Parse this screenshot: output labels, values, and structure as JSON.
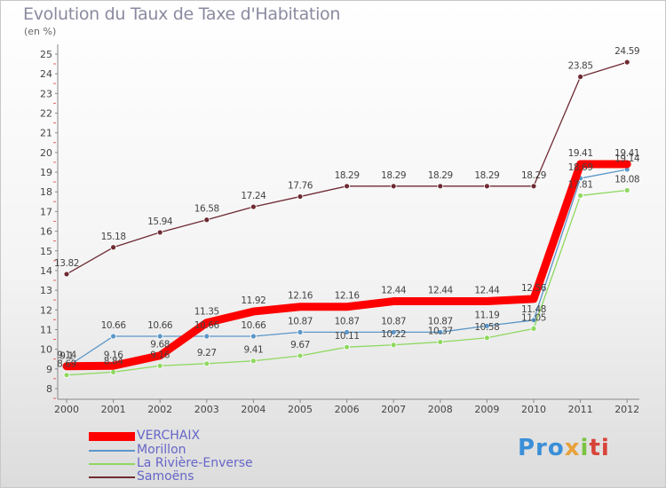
{
  "header": {
    "title": "Evolution du Taux de Taxe d'Habitation",
    "unit": "(en %)"
  },
  "logo": {
    "parts": [
      "Pro",
      "x",
      "i",
      "ti"
    ]
  },
  "chart_data": {
    "type": "line",
    "title": "Evolution du Taux de Taxe d'Habitation",
    "ylabel": "(en %)",
    "xlabel": "",
    "ylim": [
      8,
      25
    ],
    "yticks": [
      8,
      9,
      10,
      11,
      12,
      13,
      14,
      15,
      16,
      17,
      18,
      19,
      20,
      21,
      22,
      23,
      24,
      25
    ],
    "grid": false,
    "legend_position": "bottom-left",
    "categories": [
      "2000",
      "2001",
      "2002",
      "2003",
      "2004",
      "2005",
      "2006",
      "2007",
      "2008",
      "2009",
      "2010",
      "2011",
      "2012"
    ],
    "series": [
      {
        "name": "Samoëns",
        "color": "#6e2a32",
        "values": [
          13.82,
          15.18,
          15.94,
          16.58,
          17.24,
          17.76,
          18.29,
          18.29,
          18.29,
          18.29,
          18.29,
          23.85,
          24.59
        ],
        "labels": [
          "13.82",
          "15.18",
          "15.94",
          "16.58",
          "17.24",
          "17.76",
          "18.29",
          "18.29",
          "18.29",
          "18.29",
          "18.29",
          "23.85",
          "24.59"
        ]
      },
      {
        "name": "Morillon",
        "color": "#5b96c8",
        "values": [
          9.1,
          10.66,
          10.66,
          10.66,
          10.66,
          10.87,
          10.87,
          10.87,
          10.87,
          11.19,
          11.48,
          18.69,
          19.14
        ],
        "labels": [
          "9.1",
          "10.66",
          "10.66",
          "10.66",
          "10.66",
          "10.87",
          "10.87",
          "10.87",
          "10.87",
          "11.19",
          "11.48",
          "18.69",
          "19.14"
        ]
      },
      {
        "name": "La Rivière-Enverse",
        "color": "#8fd860",
        "values": [
          8.69,
          8.84,
          9.16,
          9.27,
          9.41,
          9.67,
          10.11,
          10.22,
          10.37,
          10.58,
          11.05,
          17.81,
          18.08
        ],
        "labels": [
          "8.69",
          "8.84",
          "9.16",
          "9.27",
          "9.41",
          "9.67",
          "10.11",
          "10.22",
          "10.37",
          "10.58",
          "11.05",
          "17.81",
          "18.08"
        ]
      },
      {
        "name": "VERCHAIX",
        "color": "#ff0000",
        "values": [
          9.14,
          9.16,
          9.68,
          11.35,
          11.92,
          12.16,
          12.16,
          12.44,
          12.44,
          12.44,
          12.56,
          19.41,
          19.41
        ],
        "labels": [
          "9.14",
          "9.16",
          "9.68",
          "11.35",
          "11.92",
          "12.16",
          "12.16",
          "12.44",
          "12.44",
          "12.44",
          "12.56",
          "19.41",
          "19.41"
        ]
      }
    ]
  }
}
